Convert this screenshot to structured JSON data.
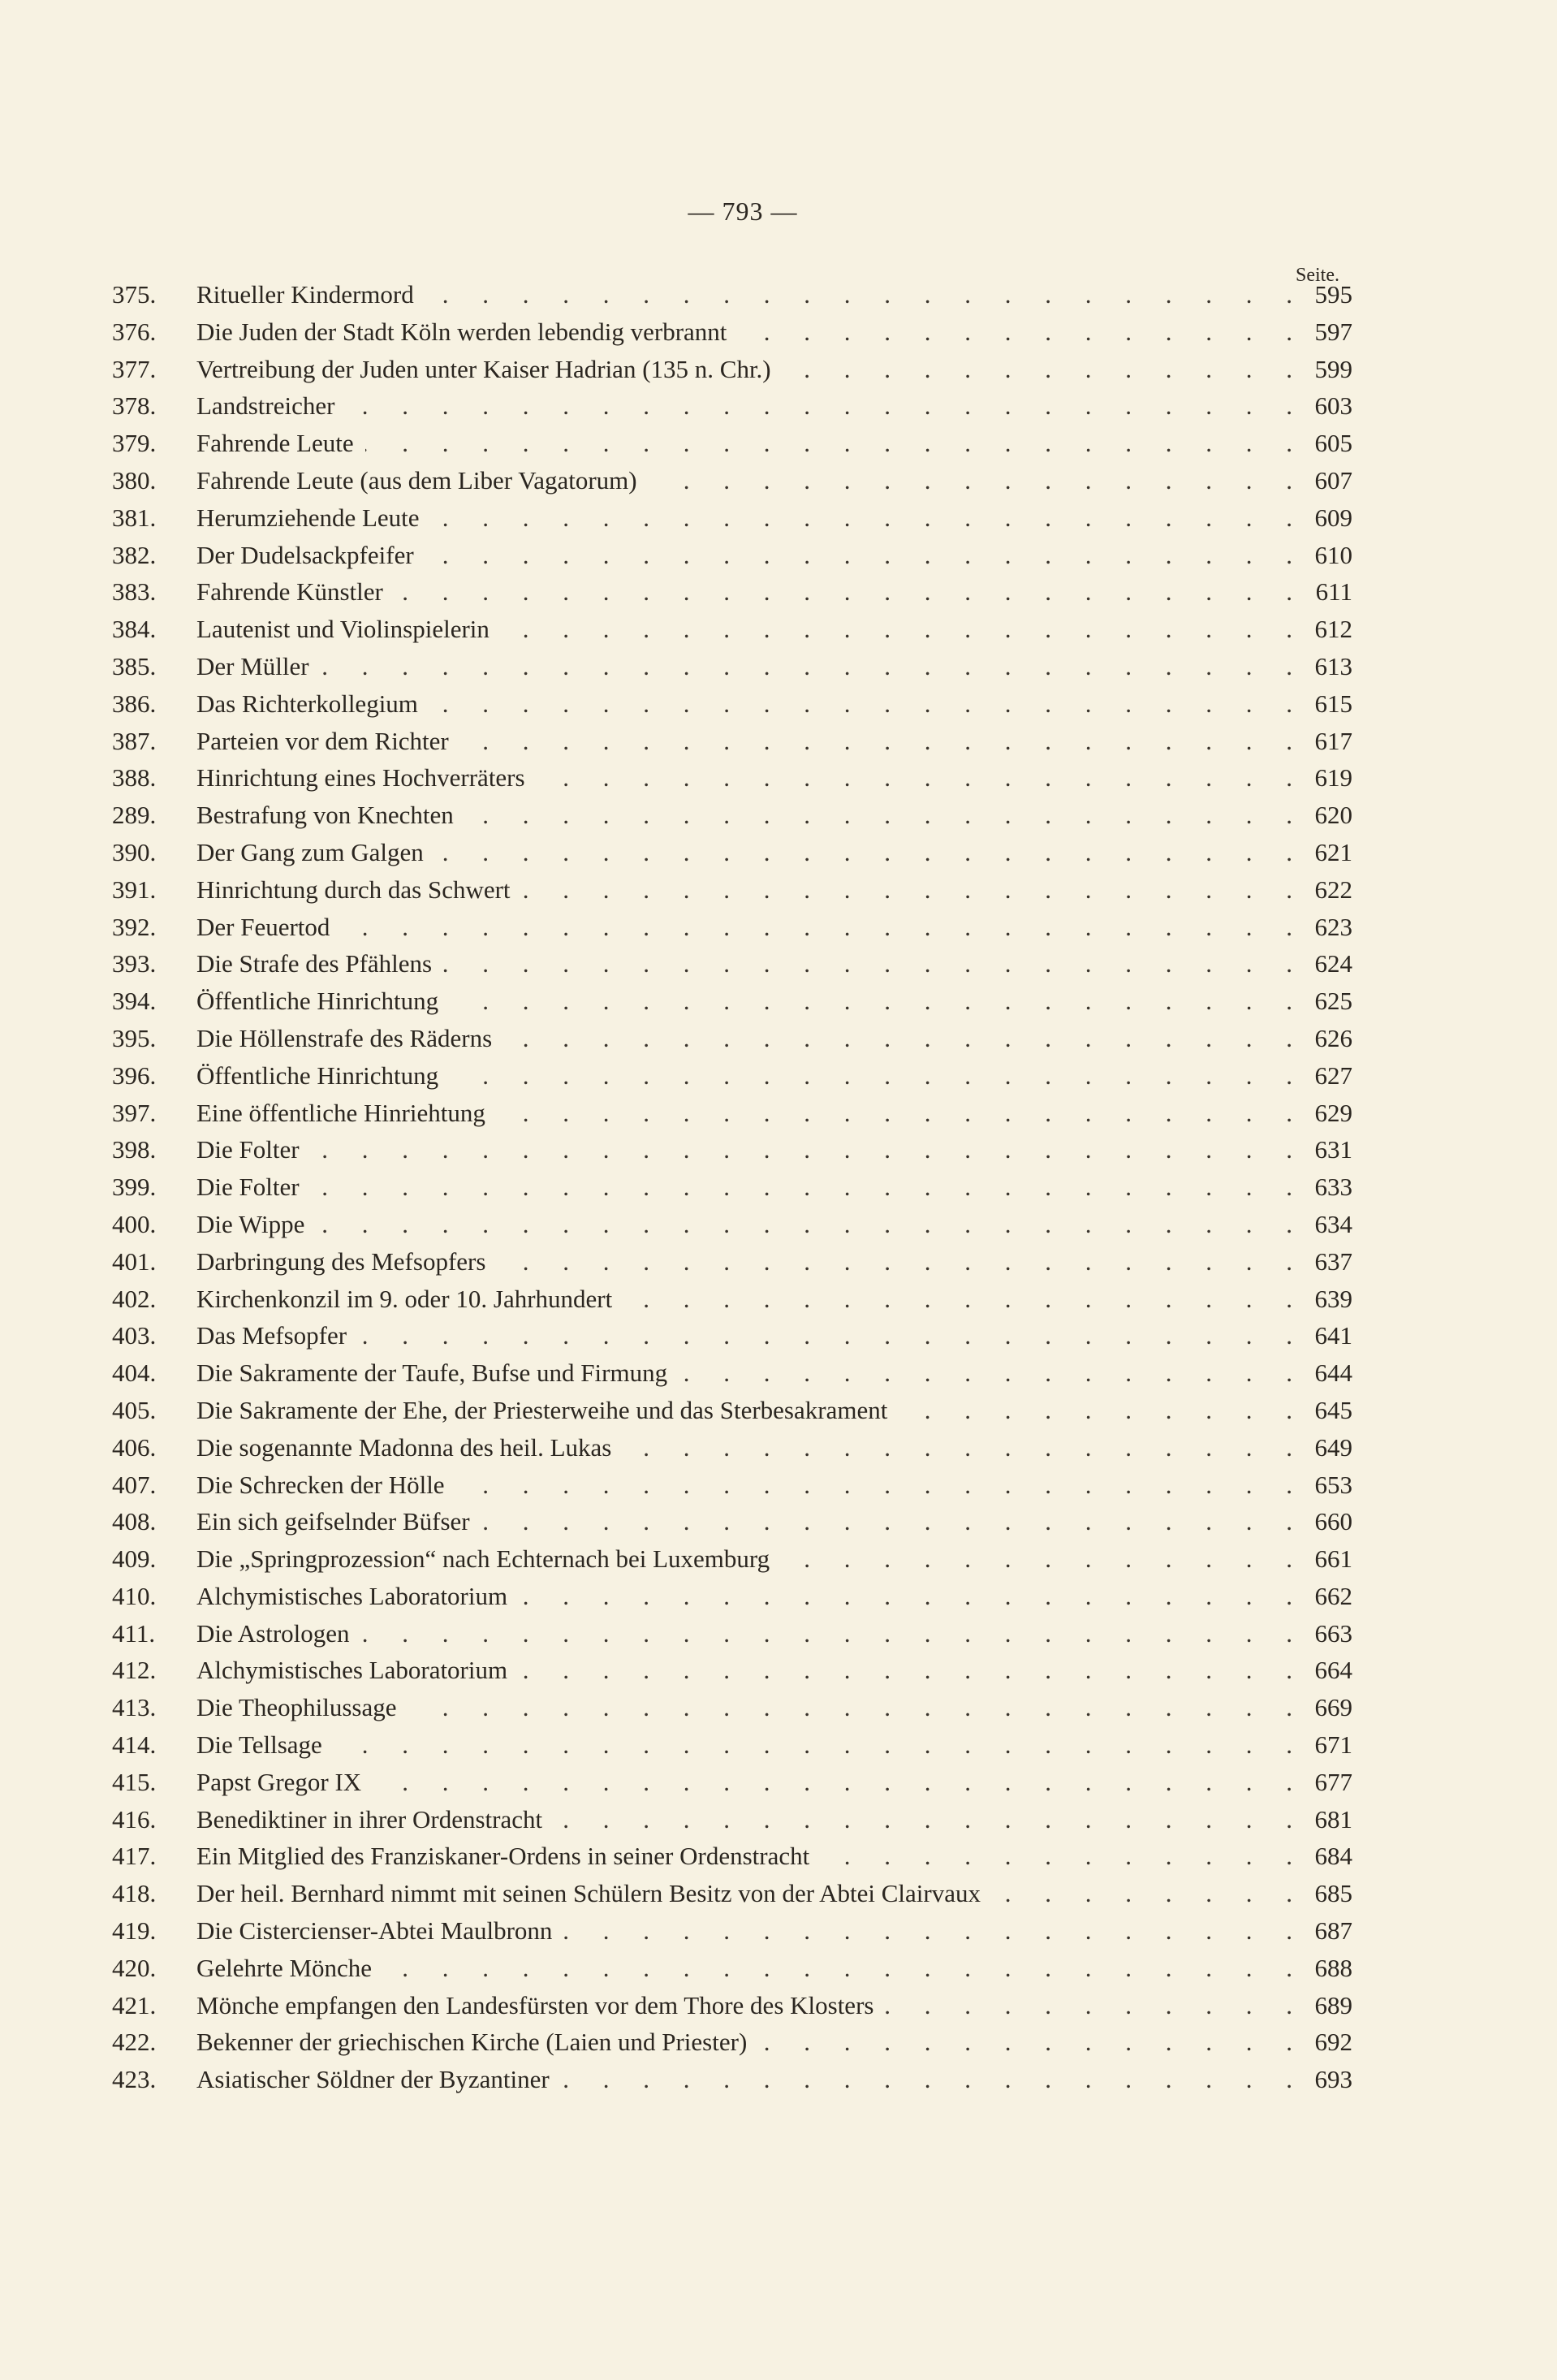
{
  "header": {
    "page_number": "— 793 —",
    "column_label": "Seite."
  },
  "entries": [
    {
      "num": "375.",
      "title": "Ritueller Kindermord",
      "page": "595"
    },
    {
      "num": "376.",
      "title": "Die Juden der Stadt Köln werden lebendig verbrannt",
      "page": "597"
    },
    {
      "num": "377.",
      "title": "Vertreibung der Juden unter Kaiser Hadrian (135 n. Chr.)",
      "page": "599"
    },
    {
      "num": "378.",
      "title": "Landstreicher",
      "page": "603"
    },
    {
      "num": "379.",
      "title": "Fahrende Leute",
      "page": "605"
    },
    {
      "num": "380.",
      "title": "Fahrende Leute (aus dem Liber Vagatorum)",
      "page": "607"
    },
    {
      "num": "381.",
      "title": "Herumziehende Leute",
      "page": "609"
    },
    {
      "num": "382.",
      "title": "Der Dudelsackpfeifer",
      "page": "610"
    },
    {
      "num": "383.",
      "title": "Fahrende Künstler",
      "page": "611"
    },
    {
      "num": "384.",
      "title": "Lautenist und Violinspielerin",
      "page": "612"
    },
    {
      "num": "385.",
      "title": "Der Müller",
      "page": "613"
    },
    {
      "num": "386.",
      "title": "Das Richterkollegium",
      "page": "615"
    },
    {
      "num": "387.",
      "title": "Parteien vor dem Richter",
      "page": "617"
    },
    {
      "num": "388.",
      "title": "Hinrichtung eines Hochverräters",
      "page": "619"
    },
    {
      "num": "289.",
      "title": "Bestrafung von Knechten",
      "page": "620"
    },
    {
      "num": "390.",
      "title": "Der Gang zum Galgen",
      "page": "621"
    },
    {
      "num": "391.",
      "title": "Hinrichtung durch das Schwert",
      "page": "622"
    },
    {
      "num": "392.",
      "title": "Der Feuertod",
      "page": "623"
    },
    {
      "num": "393.",
      "title": "Die Strafe des Pfählens",
      "page": "624"
    },
    {
      "num": "394.",
      "title": "Öffentliche Hinrichtung",
      "page": "625"
    },
    {
      "num": "395.",
      "title": "Die Höllenstrafe des Räderns",
      "page": "626"
    },
    {
      "num": "396.",
      "title": "Öffentliche Hinrichtung",
      "page": "627"
    },
    {
      "num": "397.",
      "title": "Eine öffentliche Hinriehtung",
      "page": "629"
    },
    {
      "num": "398.",
      "title": "Die Folter",
      "page": "631"
    },
    {
      "num": "399.",
      "title": "Die Folter",
      "page": "633"
    },
    {
      "num": "400.",
      "title": "Die Wippe",
      "page": "634"
    },
    {
      "num": "401.",
      "title": "Darbringung des Mefsopfers",
      "page": "637"
    },
    {
      "num": "402.",
      "title": "Kirchenkonzil im 9. oder 10. Jahrhundert",
      "page": "639"
    },
    {
      "num": "403.",
      "title": "Das Mefsopfer",
      "page": "641"
    },
    {
      "num": "404.",
      "title": "Die Sakramente der Taufe, Bufse und Firmung",
      "page": "644"
    },
    {
      "num": "405.",
      "title": "Die Sakramente der Ehe, der Priesterweihe und das Sterbesakrament",
      "page": "645"
    },
    {
      "num": "406.",
      "title": "Die sogenannte Madonna des heil. Lukas",
      "page": "649"
    },
    {
      "num": "407.",
      "title": "Die Schrecken der Hölle",
      "page": "653"
    },
    {
      "num": "408.",
      "title": "Ein sich geifselnder Büfser",
      "page": "660"
    },
    {
      "num": "409.",
      "title": "Die „Springprozession“ nach Echternach bei Luxemburg",
      "page": "661"
    },
    {
      "num": "410.",
      "title": "Alchymistisches Laboratorium",
      "page": "662"
    },
    {
      "num": "411.",
      "title": "Die Astrologen",
      "page": "663"
    },
    {
      "num": "412.",
      "title": "Alchymistisches Laboratorium",
      "page": "664"
    },
    {
      "num": "413.",
      "title": "Die Theophilussage",
      "page": "669"
    },
    {
      "num": "414.",
      "title": "Die Tellsage",
      "page": "671"
    },
    {
      "num": "415.",
      "title": "Papst Gregor IX",
      "page": "677"
    },
    {
      "num": "416.",
      "title": "Benediktiner in ihrer Ordenstracht",
      "page": "681"
    },
    {
      "num": "417.",
      "title": "Ein Mitglied des Franziskaner-Ordens in seiner Ordenstracht",
      "page": "684"
    },
    {
      "num": "418.",
      "title": "Der heil. Bernhard nimmt mit seinen Schülern Besitz von der Abtei Clairvaux",
      "page": "685"
    },
    {
      "num": "419.",
      "title": "Die Cistercienser-Abtei Maulbronn",
      "page": "687"
    },
    {
      "num": "420.",
      "title": "Gelehrte Mönche",
      "page": "688"
    },
    {
      "num": "421.",
      "title": "Mönche empfangen den Landesfürsten vor dem Thore des Klosters",
      "page": "689"
    },
    {
      "num": "422.",
      "title": "Bekenner der griechischen Kirche (Laien und Priester)",
      "page": "692"
    },
    {
      "num": "423.",
      "title": "Asiatischer Söldner der Byzantiner",
      "page": "693"
    }
  ]
}
